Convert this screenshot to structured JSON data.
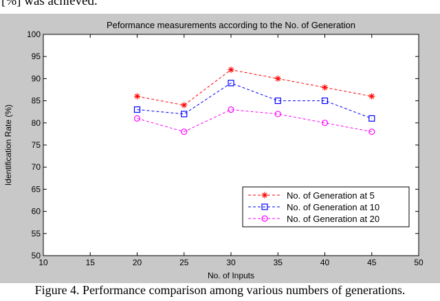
{
  "page": {
    "top_text": "[%] was achieved.",
    "caption": "Figure 4.   Performance comparison among various numbers of generations."
  },
  "chart_data": {
    "type": "line",
    "title": "Peformance measurements according to the No. of Generation",
    "xlabel": "No. of Inputs",
    "ylabel": "Identification Rate (%)",
    "xlim": [
      10,
      50
    ],
    "ylim": [
      50,
      100
    ],
    "xticks": [
      10,
      15,
      20,
      25,
      30,
      35,
      40,
      45,
      50
    ],
    "yticks": [
      50,
      55,
      60,
      65,
      70,
      75,
      80,
      85,
      90,
      95,
      100
    ],
    "grid": false,
    "legend_position": "lower-right",
    "x": [
      20,
      25,
      30,
      35,
      40,
      45
    ],
    "series": [
      {
        "name": "No. of Generation at 5",
        "values": [
          86,
          84,
          92,
          90,
          88,
          86
        ],
        "color": "#ff0000",
        "marker": "star",
        "line": "dashed"
      },
      {
        "name": "No. of Generation at 10",
        "values": [
          83,
          82,
          89,
          85,
          85,
          81
        ],
        "color": "#0000ff",
        "marker": "square",
        "line": "dashed"
      },
      {
        "name": "No. of Generation at 20",
        "values": [
          81,
          78,
          83,
          82,
          80,
          78
        ],
        "color": "#ff00ff",
        "marker": "circle",
        "line": "dashed"
      }
    ]
  }
}
